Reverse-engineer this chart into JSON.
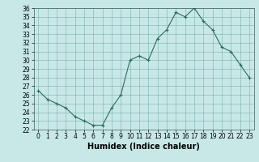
{
  "x": [
    0,
    1,
    2,
    3,
    4,
    5,
    6,
    7,
    8,
    9,
    10,
    11,
    12,
    13,
    14,
    15,
    16,
    17,
    18,
    19,
    20,
    21,
    22,
    23
  ],
  "y": [
    26.5,
    25.5,
    25.0,
    24.5,
    23.5,
    23.0,
    22.5,
    22.5,
    24.5,
    26.0,
    30.0,
    30.5,
    30.0,
    32.5,
    33.5,
    35.5,
    35.0,
    36.0,
    34.5,
    33.5,
    31.5,
    31.0,
    29.5,
    28.0
  ],
  "xlabel": "Humidex (Indice chaleur)",
  "ylim": [
    22,
    36
  ],
  "xlim": [
    -0.5,
    23.5
  ],
  "yticks": [
    22,
    23,
    24,
    25,
    26,
    27,
    28,
    29,
    30,
    31,
    32,
    33,
    34,
    35,
    36
  ],
  "xticks": [
    0,
    1,
    2,
    3,
    4,
    5,
    6,
    7,
    8,
    9,
    10,
    11,
    12,
    13,
    14,
    15,
    16,
    17,
    18,
    19,
    20,
    21,
    22,
    23
  ],
  "line_color": "#2d6b5a",
  "bg_color": "#c8e8e8",
  "grid_color": "#7ab0b0",
  "xlabel_fontsize": 7,
  "tick_fontsize": 5.5
}
